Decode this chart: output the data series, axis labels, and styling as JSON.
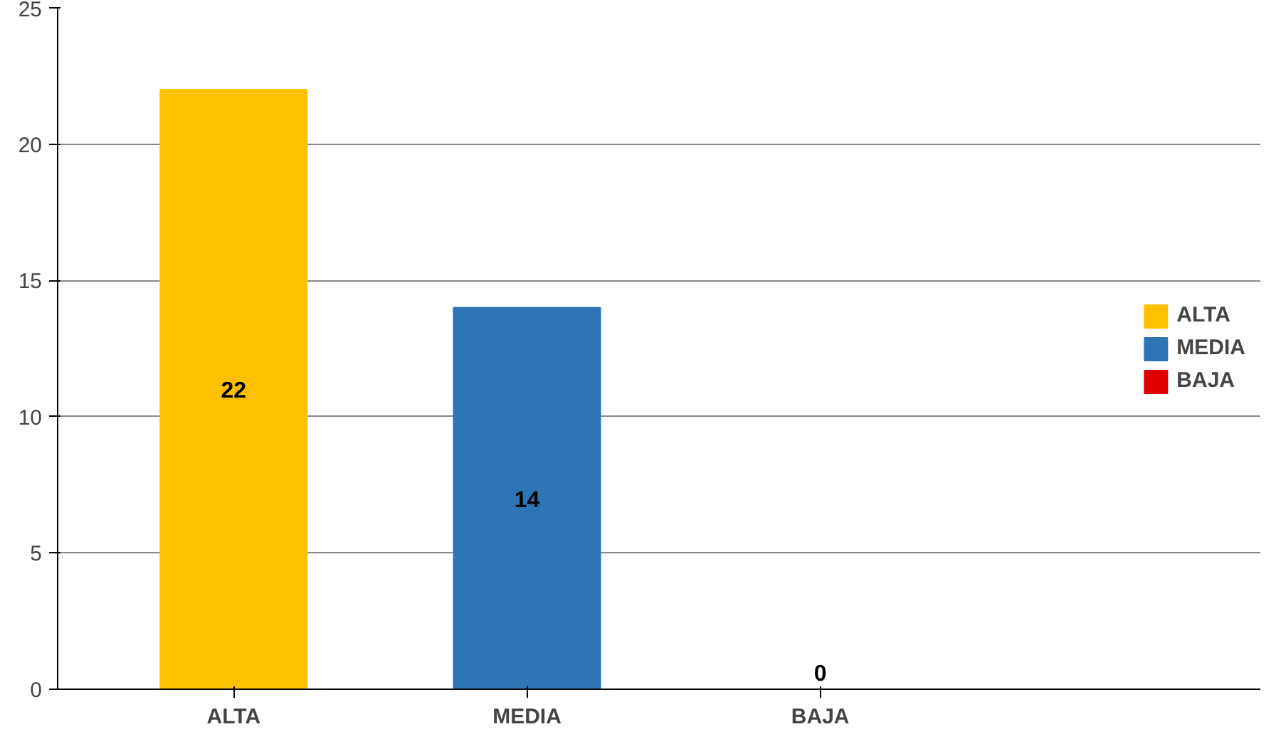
{
  "chart_data": {
    "type": "bar",
    "categories": [
      "ALTA",
      "MEDIA",
      "BAJA"
    ],
    "series": [
      {
        "name": "ALTA",
        "color": "#ffc000",
        "values": [
          22,
          null,
          null
        ]
      },
      {
        "name": "MEDIA",
        "color": "#2e75b6",
        "values": [
          null,
          14,
          null
        ]
      },
      {
        "name": "BAJA",
        "color": "#e00000",
        "values": [
          null,
          null,
          0
        ]
      }
    ],
    "ylim": [
      0,
      25
    ],
    "yticks": [
      0,
      5,
      10,
      15,
      20,
      25
    ],
    "grid": "y",
    "legend": "right",
    "data_labels": true
  }
}
